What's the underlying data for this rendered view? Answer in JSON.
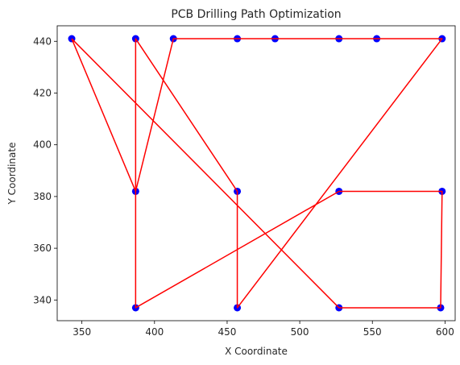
{
  "chart_data": {
    "type": "scatter",
    "title": "PCB Drilling Path Optimization",
    "xlabel": "X Coordinate",
    "ylabel": "Y Coordinate",
    "xlim": [
      333,
      607
    ],
    "ylim": [
      332,
      446
    ],
    "xticks": [
      350,
      400,
      450,
      500,
      550,
      600
    ],
    "yticks": [
      340,
      360,
      380,
      400,
      420,
      440
    ],
    "grid": false,
    "points": [
      [
        343,
        441
      ],
      [
        387,
        441
      ],
      [
        413,
        441
      ],
      [
        457,
        441
      ],
      [
        483,
        441
      ],
      [
        527,
        441
      ],
      [
        553,
        441
      ],
      [
        598,
        441
      ],
      [
        387,
        382
      ],
      [
        457,
        382
      ],
      [
        527,
        382
      ],
      [
        598,
        382
      ],
      [
        387,
        337
      ],
      [
        457,
        337
      ],
      [
        527,
        337
      ],
      [
        597,
        337
      ]
    ],
    "path": [
      [
        343,
        441
      ],
      [
        527,
        337
      ],
      [
        597,
        337
      ],
      [
        598,
        382
      ],
      [
        527,
        382
      ],
      [
        387,
        337
      ],
      [
        387,
        441
      ],
      [
        457,
        382
      ],
      [
        457,
        337
      ],
      [
        598,
        441
      ],
      [
        553,
        441
      ],
      [
        527,
        441
      ],
      [
        483,
        441
      ],
      [
        457,
        441
      ],
      [
        413,
        441
      ],
      [
        387,
        382
      ],
      [
        343,
        441
      ]
    ],
    "colors": {
      "points": "#0000ff",
      "path": "#ff0000"
    }
  }
}
